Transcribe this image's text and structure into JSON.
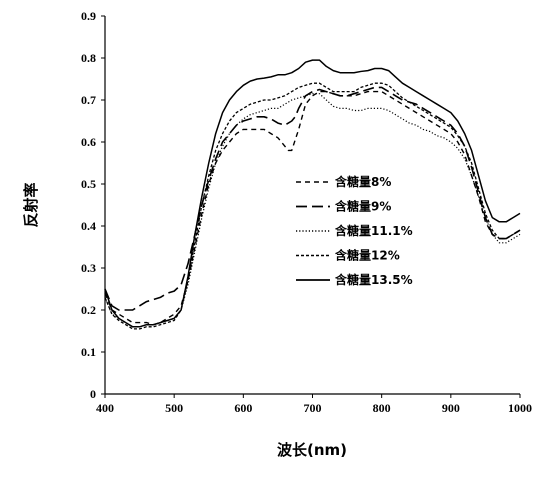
{
  "chart_data": {
    "type": "line",
    "xlabel": "波长(nm)",
    "ylabel": "反射率",
    "xlim": [
      400,
      1000
    ],
    "ylim": [
      0,
      0.9
    ],
    "x_ticks": [
      "400",
      "500",
      "600",
      "700",
      "800",
      "900",
      "1000"
    ],
    "y_ticks": [
      "0",
      "0.1",
      "0.2",
      "0.3",
      "0.4",
      "0.5",
      "0.6",
      "0.7",
      "0.8",
      "0.9"
    ],
    "grid": false,
    "legend_position": "center-right",
    "series": [
      {
        "name": "含糖量8%",
        "style": "dashed-short",
        "color": "#000000",
        "x": [
          400,
          410,
          420,
          430,
          440,
          450,
          460,
          470,
          480,
          490,
          500,
          510,
          520,
          530,
          540,
          550,
          560,
          570,
          580,
          590,
          600,
          610,
          620,
          630,
          640,
          650,
          660,
          665,
          670,
          680,
          690,
          700,
          710,
          720,
          730,
          740,
          750,
          760,
          770,
          780,
          790,
          800,
          810,
          820,
          830,
          840,
          850,
          860,
          870,
          880,
          890,
          900,
          910,
          920,
          930,
          940,
          950,
          960,
          970,
          980,
          990,
          1000
        ],
        "y": [
          0.24,
          0.2,
          0.19,
          0.18,
          0.17,
          0.17,
          0.17,
          0.165,
          0.17,
          0.18,
          0.19,
          0.21,
          0.27,
          0.35,
          0.43,
          0.5,
          0.55,
          0.58,
          0.6,
          0.62,
          0.63,
          0.63,
          0.63,
          0.63,
          0.62,
          0.61,
          0.59,
          0.58,
          0.58,
          0.63,
          0.69,
          0.71,
          0.72,
          0.72,
          0.715,
          0.71,
          0.71,
          0.71,
          0.715,
          0.72,
          0.72,
          0.72,
          0.71,
          0.7,
          0.69,
          0.68,
          0.67,
          0.66,
          0.65,
          0.64,
          0.63,
          0.62,
          0.6,
          0.57,
          0.52,
          0.47,
          0.41,
          0.38,
          0.37,
          0.37,
          0.38,
          0.39
        ]
      },
      {
        "name": "含糖量9%",
        "style": "dashed-long",
        "color": "#000000",
        "x": [
          400,
          410,
          420,
          430,
          440,
          450,
          460,
          470,
          480,
          490,
          500,
          510,
          520,
          530,
          540,
          550,
          560,
          570,
          580,
          590,
          600,
          610,
          620,
          630,
          640,
          650,
          660,
          670,
          675,
          680,
          690,
          700,
          710,
          720,
          730,
          740,
          750,
          760,
          770,
          780,
          790,
          800,
          810,
          820,
          830,
          840,
          850,
          860,
          870,
          880,
          890,
          900,
          910,
          920,
          930,
          940,
          950,
          960,
          970,
          980,
          990,
          1000
        ],
        "y": [
          0.25,
          0.21,
          0.2,
          0.2,
          0.2,
          0.21,
          0.22,
          0.225,
          0.23,
          0.24,
          0.245,
          0.26,
          0.31,
          0.38,
          0.45,
          0.51,
          0.56,
          0.6,
          0.62,
          0.64,
          0.65,
          0.655,
          0.66,
          0.66,
          0.655,
          0.645,
          0.64,
          0.65,
          0.66,
          0.68,
          0.71,
          0.72,
          0.725,
          0.72,
          0.715,
          0.71,
          0.71,
          0.715,
          0.72,
          0.725,
          0.73,
          0.73,
          0.72,
          0.71,
          0.7,
          0.695,
          0.69,
          0.68,
          0.67,
          0.66,
          0.65,
          0.64,
          0.62,
          0.59,
          0.54,
          0.48,
          0.42,
          0.38,
          0.37,
          0.37,
          0.38,
          0.39
        ]
      },
      {
        "name": "含糖量11.1%",
        "style": "dotted",
        "color": "#000000",
        "x": [
          400,
          410,
          420,
          430,
          440,
          450,
          460,
          470,
          480,
          490,
          500,
          510,
          520,
          530,
          540,
          550,
          560,
          570,
          580,
          590,
          600,
          610,
          620,
          630,
          640,
          650,
          660,
          670,
          680,
          690,
          700,
          710,
          720,
          730,
          740,
          750,
          760,
          770,
          780,
          790,
          800,
          810,
          820,
          830,
          840,
          850,
          860,
          870,
          880,
          890,
          900,
          910,
          920,
          930,
          940,
          950,
          960,
          970,
          980,
          990,
          1000
        ],
        "y": [
          0.23,
          0.19,
          0.18,
          0.17,
          0.16,
          0.16,
          0.165,
          0.165,
          0.17,
          0.175,
          0.18,
          0.2,
          0.26,
          0.34,
          0.42,
          0.49,
          0.55,
          0.59,
          0.62,
          0.64,
          0.655,
          0.665,
          0.67,
          0.675,
          0.68,
          0.68,
          0.69,
          0.7,
          0.705,
          0.71,
          0.715,
          0.715,
          0.7,
          0.685,
          0.68,
          0.68,
          0.675,
          0.675,
          0.68,
          0.68,
          0.68,
          0.675,
          0.665,
          0.655,
          0.645,
          0.64,
          0.63,
          0.625,
          0.615,
          0.61,
          0.6,
          0.585,
          0.56,
          0.52,
          0.47,
          0.42,
          0.38,
          0.36,
          0.36,
          0.37,
          0.38
        ]
      },
      {
        "name": "含糖量12%",
        "style": "dashed-fine",
        "color": "#000000",
        "x": [
          400,
          410,
          420,
          430,
          440,
          450,
          460,
          470,
          480,
          490,
          500,
          510,
          520,
          530,
          540,
          550,
          560,
          570,
          580,
          590,
          600,
          610,
          620,
          630,
          640,
          650,
          660,
          670,
          680,
          690,
          700,
          710,
          720,
          730,
          740,
          750,
          760,
          770,
          780,
          790,
          800,
          810,
          820,
          830,
          840,
          850,
          860,
          870,
          880,
          890,
          900,
          910,
          920,
          930,
          940,
          950,
          960,
          970,
          980,
          990,
          1000
        ],
        "y": [
          0.23,
          0.19,
          0.175,
          0.165,
          0.155,
          0.155,
          0.16,
          0.16,
          0.165,
          0.17,
          0.175,
          0.2,
          0.27,
          0.36,
          0.45,
          0.52,
          0.58,
          0.62,
          0.65,
          0.67,
          0.68,
          0.69,
          0.695,
          0.7,
          0.7,
          0.705,
          0.71,
          0.72,
          0.73,
          0.735,
          0.74,
          0.74,
          0.73,
          0.72,
          0.72,
          0.72,
          0.72,
          0.73,
          0.735,
          0.74,
          0.74,
          0.735,
          0.72,
          0.705,
          0.695,
          0.685,
          0.675,
          0.665,
          0.655,
          0.645,
          0.635,
          0.615,
          0.59,
          0.55,
          0.49,
          0.43,
          0.39,
          0.37,
          0.37,
          0.38,
          0.39
        ]
      },
      {
        "name": "含糖量13.5%",
        "style": "solid",
        "color": "#000000",
        "x": [
          400,
          410,
          420,
          430,
          440,
          450,
          460,
          470,
          480,
          490,
          500,
          510,
          520,
          530,
          540,
          550,
          560,
          570,
          580,
          590,
          600,
          610,
          620,
          630,
          640,
          650,
          660,
          670,
          680,
          690,
          700,
          710,
          720,
          730,
          740,
          750,
          760,
          770,
          780,
          790,
          800,
          810,
          820,
          830,
          840,
          850,
          860,
          870,
          880,
          890,
          900,
          910,
          920,
          930,
          940,
          950,
          960,
          970,
          980,
          990,
          1000
        ],
        "y": [
          0.25,
          0.2,
          0.18,
          0.17,
          0.16,
          0.16,
          0.165,
          0.165,
          0.17,
          0.175,
          0.18,
          0.2,
          0.28,
          0.38,
          0.47,
          0.55,
          0.62,
          0.67,
          0.7,
          0.72,
          0.735,
          0.745,
          0.75,
          0.752,
          0.755,
          0.76,
          0.76,
          0.765,
          0.775,
          0.79,
          0.795,
          0.795,
          0.78,
          0.77,
          0.765,
          0.765,
          0.765,
          0.768,
          0.77,
          0.775,
          0.775,
          0.77,
          0.755,
          0.74,
          0.73,
          0.72,
          0.71,
          0.7,
          0.69,
          0.68,
          0.67,
          0.65,
          0.62,
          0.58,
          0.52,
          0.46,
          0.42,
          0.41,
          0.41,
          0.42,
          0.43
        ]
      }
    ]
  }
}
